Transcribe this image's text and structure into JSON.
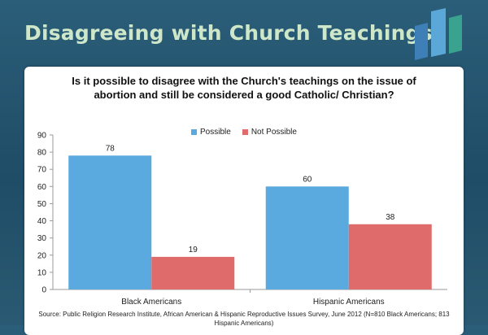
{
  "slide": {
    "title": "Disagreeing with Church Teachings"
  },
  "colors": {
    "background": "#245570",
    "title": "#cfe7c9",
    "logo_bars": [
      "#3e7fb8",
      "#5aa7d8",
      "#3aa38f"
    ]
  },
  "source_note": "Source: Public Religion Research Institute, African American & Hispanic Reproductive Issues Survey, June 2012 (N=810 Black Americans; 813 Hispanic Americans)",
  "chart_data": {
    "type": "bar",
    "title": "Is it possible to disagree with the Church's teachings on the issue of abortion and still be considered a good Catholic/ Christian?",
    "categories": [
      "Black Americans",
      "Hispanic Americans"
    ],
    "series": [
      {
        "name": "Possible",
        "values": [
          78,
          60
        ],
        "color": "#5aaae0"
      },
      {
        "name": "Not Possible",
        "values": [
          19,
          38
        ],
        "color": "#e06b6b"
      }
    ],
    "ylim": [
      0,
      90
    ],
    "yticks": [
      0,
      10,
      20,
      30,
      40,
      50,
      60,
      70,
      80,
      90
    ],
    "xlabel": "",
    "ylabel": "",
    "legend_position": "top-center",
    "grid": false
  }
}
